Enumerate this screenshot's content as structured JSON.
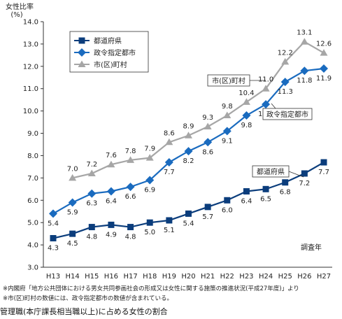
{
  "chart_data": {
    "type": "line",
    "ylabel_line1": "女性比率",
    "ylabel_line2": "(%)",
    "xlabel": "調査年",
    "ylim": [
      3.0,
      14.0
    ],
    "yticks": [
      "3.0",
      "4.0",
      "5.0",
      "6.0",
      "7.0",
      "8.0",
      "9.0",
      "10.0",
      "11.0",
      "12.0",
      "13.0",
      "14.0"
    ],
    "categories": [
      "H13",
      "H14",
      "H15",
      "H16",
      "H17",
      "H18",
      "H19",
      "H20",
      "H21",
      "H22",
      "H23",
      "H24",
      "H25",
      "H26",
      "H27"
    ],
    "grid": false,
    "legend_position": "top-left",
    "series": [
      {
        "name": "都道府県",
        "color": "#0b3d7c",
        "marker": "square",
        "values": [
          4.3,
          4.5,
          4.8,
          4.9,
          4.8,
          5.0,
          5.1,
          5.4,
          5.7,
          6.0,
          6.4,
          6.5,
          6.8,
          7.2,
          7.7
        ],
        "labels": [
          "4.3",
          "4.5",
          "4.8",
          "4.9",
          "4.8",
          "5.0",
          "5.1",
          "5.4",
          "5.7",
          "6.0",
          "6.4",
          "6.5",
          "6.8",
          "7.2",
          "7.7"
        ],
        "label_side": "below",
        "callout": "都道府県"
      },
      {
        "name": "政令指定都市",
        "color": "#1a6bbf",
        "marker": "diamond",
        "values": [
          5.4,
          5.9,
          6.3,
          6.4,
          6.6,
          6.9,
          7.7,
          8.2,
          8.6,
          9.1,
          9.8,
          10.3,
          11.3,
          11.8,
          11.9
        ],
        "labels": [
          "5.4",
          "5.9",
          "6.3",
          "6.4",
          "6.6",
          "6.9",
          "7.7",
          "8.2",
          "8.6",
          "9.1",
          "9.8",
          "10.3",
          "11.3",
          "11.8",
          "11.9"
        ],
        "label_side": "below",
        "callout": "政令指定都市"
      },
      {
        "name": "市(区)町村",
        "color": "#a6a6a6",
        "marker": "triangle",
        "values": [
          null,
          7.0,
          7.2,
          7.6,
          7.8,
          7.9,
          8.6,
          8.9,
          9.3,
          9.8,
          10.4,
          11.0,
          12.2,
          13.1,
          12.6
        ],
        "labels": [
          "",
          "7.0",
          "7.2",
          "7.6",
          "7.8",
          "7.9",
          "8.6",
          "8.9",
          "9.3",
          "9.8",
          "10.4",
          "11.0",
          "12.2",
          "13.1",
          "12.6"
        ],
        "label_side": "above",
        "callout": "市(区)町村"
      }
    ]
  },
  "notes": [
    "※内閣府「地方公共団体における男女共同参画社会の形成又は女性に関する施策の推進状況(平成27年度)」より",
    "※市(区)町村の数値には、政令指定都市の数値が含まれている。"
  ],
  "caption": "管理職(本庁課長相当職以上)に占める女性の割合"
}
